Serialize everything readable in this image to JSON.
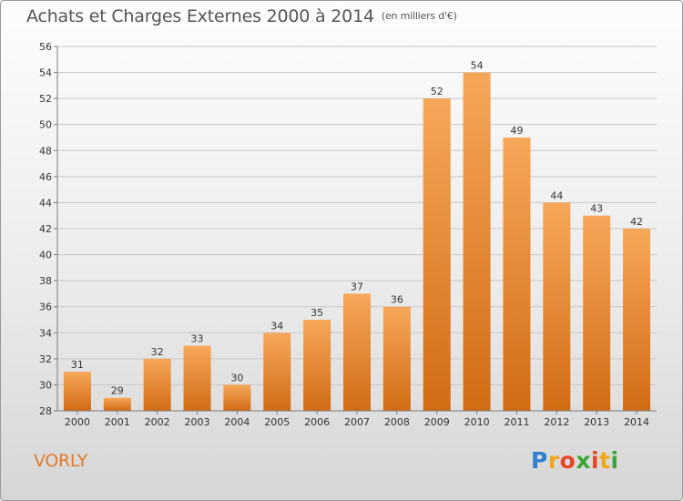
{
  "title": "Achats et Charges Externes 2000 à 2014",
  "unit_note": "(en milliers d'€)",
  "commune": "VORLY",
  "logo": {
    "letters": [
      "P",
      "r",
      "o",
      "x",
      "i",
      "t",
      "i"
    ],
    "colors": [
      "#2f7fd0",
      "#f0a81a",
      "#e8462a",
      "#3aa635",
      "#e8462a",
      "#f0a81a",
      "#3aa635"
    ]
  },
  "colors": {
    "bar_light": "#f6a75a",
    "bar_dark": "#d16b14",
    "grid": "#c8c8c8",
    "axis": "#7a7a7a"
  },
  "chart_data": {
    "type": "bar",
    "categories": [
      "2000",
      "2001",
      "2002",
      "2003",
      "2004",
      "2005",
      "2006",
      "2007",
      "2008",
      "2009",
      "2010",
      "2011",
      "2012",
      "2013",
      "2014"
    ],
    "values": [
      31,
      29,
      32,
      33,
      30,
      34,
      35,
      37,
      36,
      52,
      54,
      49,
      44,
      43,
      42
    ],
    "ylim": [
      28,
      56
    ],
    "yticks": [
      28,
      30,
      32,
      34,
      36,
      38,
      40,
      42,
      44,
      46,
      48,
      50,
      52,
      54,
      56
    ],
    "grid": "horizontal",
    "data_labels": true
  }
}
